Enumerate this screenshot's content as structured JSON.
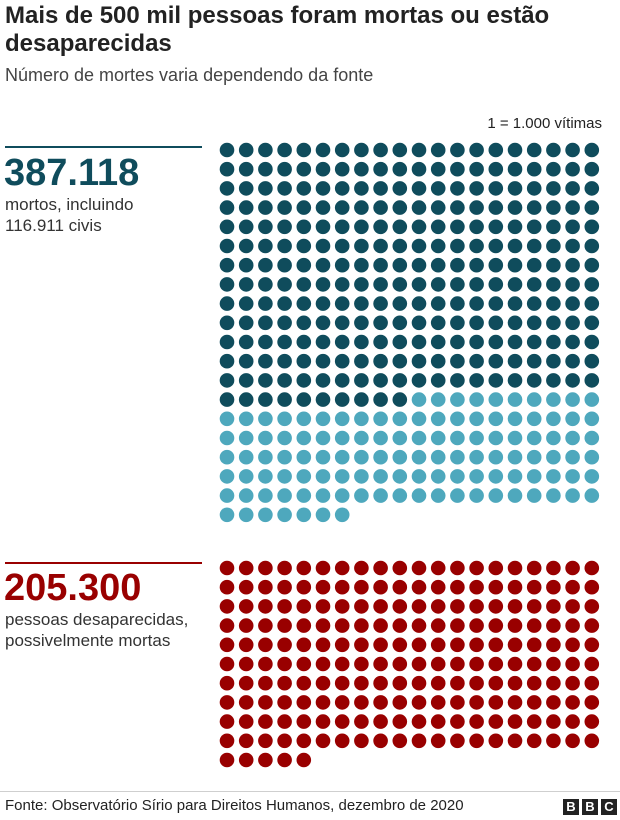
{
  "header": {
    "title": "Mais de 500 mil pessoas foram mortas ou estão desaparecidas",
    "subtitle": "Número de mortes varia dependendo da fonte",
    "scale_note": "1 = 1.000 vítimas"
  },
  "dead": {
    "number": "387.118",
    "line1": "mortos, incluindo",
    "line2": "116.911 civis",
    "color": "#0f4c5c"
  },
  "missing": {
    "number": "205.300",
    "line1": "pessoas desaparecidas,",
    "line2": "possivelmente mortas",
    "color": "#990000"
  },
  "footer": {
    "source": "Fonte: Observatório Sírio para Direitos Humanos, dezembro de 2020",
    "logo_letters": [
      "B",
      "B",
      "C"
    ]
  },
  "chart_data": {
    "type": "waffle",
    "unit": "1 = 1.000 vítimas",
    "columns": 20,
    "groups": [
      {
        "label": "mortos",
        "total": 387118,
        "segments": [
          {
            "label": "mortos, incluindo",
            "value": 270207,
            "units": 270,
            "color": "#0f4c5c"
          },
          {
            "label": "116.911 civis",
            "value": 116911,
            "units": 117,
            "color": "#4ea8bd"
          }
        ]
      },
      {
        "label": "pessoas desaparecidas, possivelmente mortas",
        "total": 205300,
        "segments": [
          {
            "label": "pessoas desaparecidas, possivelmente mortas",
            "value": 205300,
            "units": 205,
            "color": "#990000"
          }
        ]
      }
    ]
  }
}
